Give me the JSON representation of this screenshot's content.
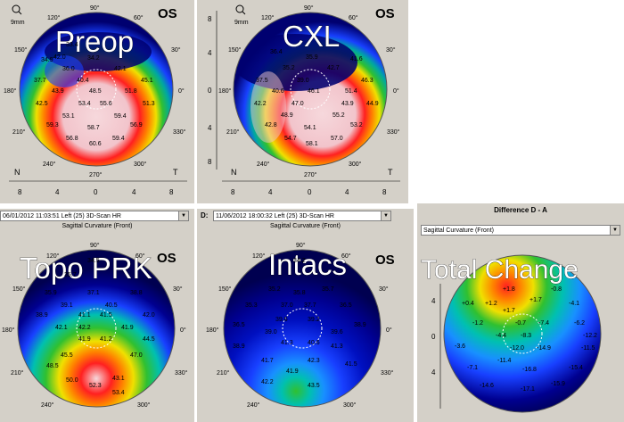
{
  "panels": {
    "preop": {
      "title": "Preop",
      "eye": "OS",
      "scale_label": "9mm",
      "values": [
        "33.4",
        "34.9",
        "34.2",
        "37.7",
        "36.0",
        "40.4",
        "42.1",
        "43.9",
        "48.5",
        "45.1",
        "51.8",
        "42.5",
        "53.4",
        "55.6",
        "51.3",
        "53.1",
        "59.4",
        "59.3",
        "58.7",
        "56.9",
        "59.4",
        "56.8",
        "60.6",
        "42.0"
      ]
    },
    "cxl": {
      "title": "CXL",
      "eye": "OS",
      "scale_label": "9mm",
      "values": [
        "36.4",
        "35.9",
        "41.6",
        "35.2",
        "42.7",
        "37.5",
        "39.0",
        "40.6",
        "46.1",
        "46.3",
        "42.2",
        "47.0",
        "51.4",
        "44.9",
        "48.9",
        "55.2",
        "42.8",
        "54.1",
        "53.2",
        "54.7",
        "57.0",
        "58.1",
        "43.9"
      ]
    },
    "topo_prk": {
      "title": "Topo PRK",
      "eye": "OS",
      "header_bar": "06/01/2012  11:03:51   Left    (25) 3D-Scan HR",
      "subtitle": "Sagittal Curvature (Front)",
      "values": [
        "34.5",
        "35.7",
        "35.9",
        "37.1",
        "38.8",
        "39.1",
        "40.5",
        "41.1",
        "42.1",
        "42.2",
        "41.9",
        "42.0",
        "38.9",
        "41.2",
        "41.9",
        "44.5",
        "45.5",
        "47.0",
        "48.5",
        "50.0",
        "52.3",
        "53.4",
        "43.1",
        "41.5"
      ]
    },
    "intacs": {
      "title": "Intacs",
      "eye": "OS",
      "header_bar": "11/06/2012  18:00:32   Left    (25) 3D-Scan HR",
      "header_prefix": "D:",
      "subtitle": "Sagittal Curvature (Front)",
      "values": [
        "34.2",
        "35.2",
        "35.8",
        "35.7",
        "35.3",
        "37.0",
        "37.7",
        "36.5",
        "36.5",
        "39.6",
        "39.2",
        "38.9",
        "39.0",
        "41.3",
        "40.6",
        "39.6",
        "38.9",
        "41.3",
        "41.7",
        "42.3",
        "41.5",
        "41.9",
        "43.5",
        "42.2"
      ]
    },
    "total": {
      "title": "Total Change",
      "heading": "Difference D - A",
      "header_bar": "Sagittal Curvature (Front)",
      "values": [
        "+1.8",
        "+1.7",
        "-0.8",
        "+0.4",
        "+1.7",
        "-4.1",
        "-1.2",
        "-0.7",
        "-7.4",
        "-6.2",
        "-8.3",
        "-12.2",
        "-3.6",
        "-12.0",
        "-14.9",
        "-11.5",
        "-7.1",
        "-11.4",
        "-16.8",
        "-15.4",
        "-14.6",
        "-17.1",
        "-15.9",
        "+1.2",
        "-4.4"
      ]
    }
  },
  "degree_labels": [
    "90°",
    "120°",
    "60°",
    "150°",
    "30°",
    "180°",
    "0°",
    "210°",
    "330°",
    "240°",
    "300°",
    "270°"
  ],
  "axis": {
    "x_ticks": [
      "8",
      "4",
      "0",
      "4",
      "8"
    ],
    "y_ticks": [
      "8",
      "4",
      "0",
      "4",
      "8"
    ],
    "nasal": "N",
    "temporal": "T"
  }
}
